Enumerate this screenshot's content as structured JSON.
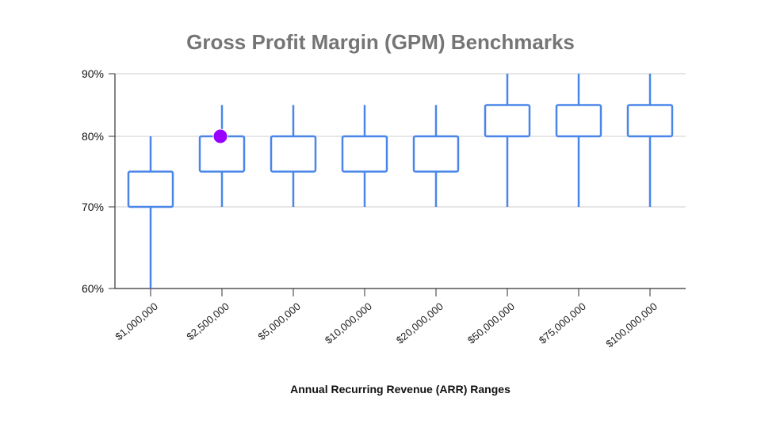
{
  "chart_data": {
    "type": "boxplot",
    "title": "Gross Profit Margin (GPM) Benchmarks",
    "xlabel": "Annual Recurring Revenue (ARR) Ranges",
    "ylabel": "",
    "y_ticks": [
      {
        "value": 60,
        "label": "60%"
      },
      {
        "value": 70,
        "label": "70%"
      },
      {
        "value": 80,
        "label": "80%"
      },
      {
        "value": 90,
        "label": "90%"
      }
    ],
    "ylim": [
      60,
      90
    ],
    "grid": true,
    "series_color": "#4a86e8",
    "marker_color": "#9900ff",
    "categories": [
      "$1,000,000",
      "$2,500,000",
      "$5,000,000",
      "$10,000,000",
      "$20,000,000",
      "$50,000,000",
      "$75,000,000",
      "$100,000,000"
    ],
    "boxes": [
      {
        "min": 60,
        "q1": 70,
        "q3": 75,
        "max": 80
      },
      {
        "min": 70,
        "q1": 75,
        "q3": 80,
        "max": 85
      },
      {
        "min": 70,
        "q1": 75,
        "q3": 80,
        "max": 85
      },
      {
        "min": 70,
        "q1": 75,
        "q3": 80,
        "max": 85
      },
      {
        "min": 70,
        "q1": 75,
        "q3": 80,
        "max": 85
      },
      {
        "min": 70,
        "q1": 80,
        "q3": 85,
        "max": 90
      },
      {
        "min": 70,
        "q1": 80,
        "q3": 85,
        "max": 90
      },
      {
        "min": 70,
        "q1": 80,
        "q3": 85,
        "max": 90
      }
    ],
    "highlight_point": {
      "category": "$2,500,000",
      "value": 80
    }
  }
}
